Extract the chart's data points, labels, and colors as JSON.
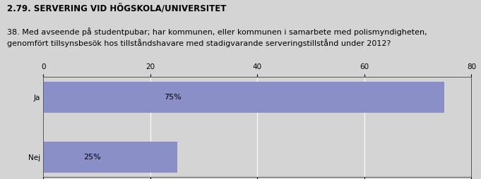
{
  "title": "2.79. SERVERING VID HÖGSKOLA/UNIVERSITET",
  "question": "38. Med avseende på studentpubar; har kommunen, eller kommunen i samarbete med polismyndigheten,\ngenomfört tillsynsbesök hos tillståndshavare med stadigvarande serveringstillstånd under 2012?",
  "categories": [
    "Ja",
    "Nej"
  ],
  "values": [
    75,
    25
  ],
  "labels": [
    "75%",
    "25%"
  ],
  "bar_color": "#8B8FC8",
  "background_color": "#D4D4D4",
  "plot_bg_color": "#D4D4D4",
  "xlim": [
    0,
    80
  ],
  "xticks": [
    0,
    20,
    40,
    60,
    80
  ],
  "title_fontsize": 8.5,
  "question_fontsize": 8,
  "tick_fontsize": 7.5,
  "label_fontsize": 8
}
